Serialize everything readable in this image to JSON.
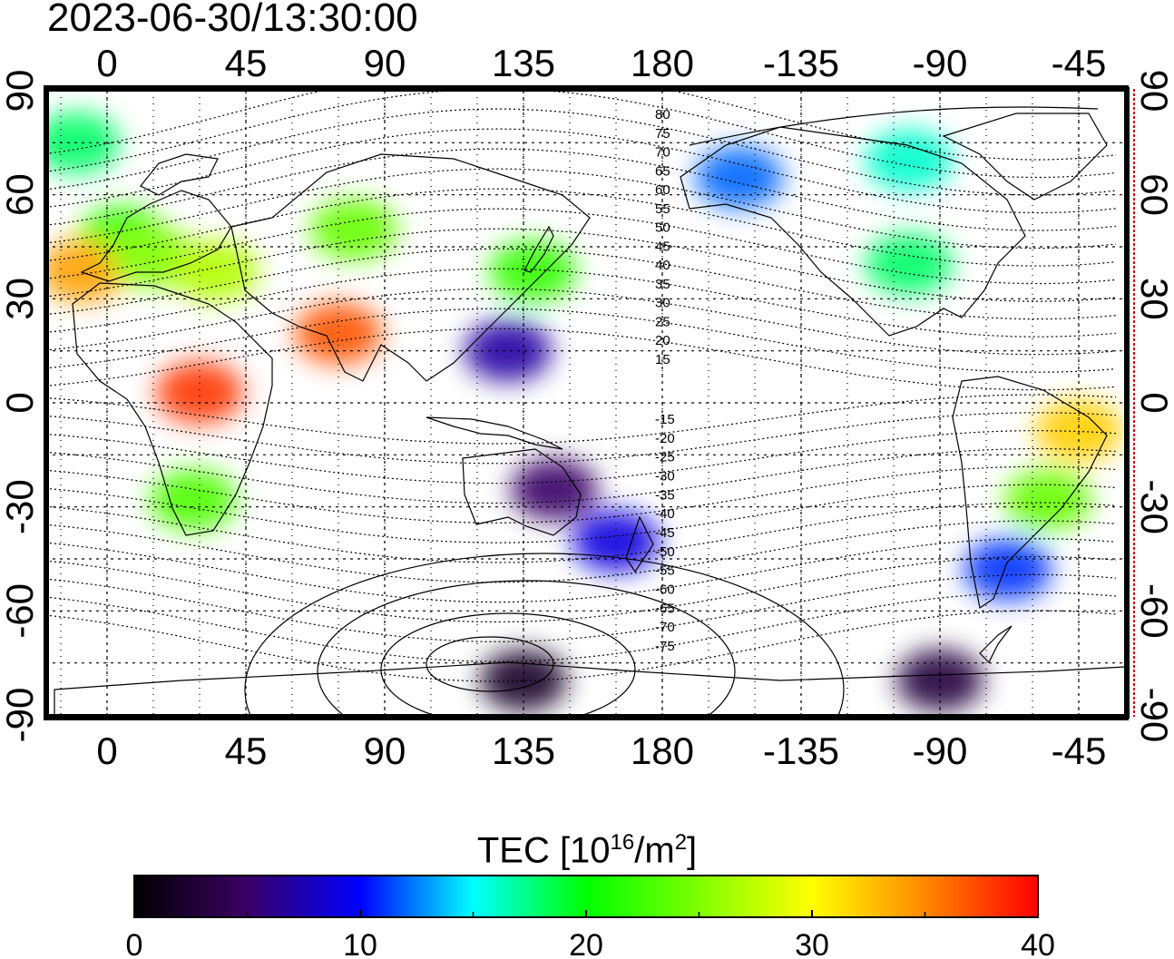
{
  "timestamp": "2023-06-30/13:30:00",
  "axes": {
    "top_lon_ticks": [
      "0",
      "45",
      "90",
      "135",
      "180",
      "-135",
      "-90",
      "-45"
    ],
    "bottom_lon_ticks": [
      "0",
      "45",
      "90",
      "135",
      "180",
      "-135",
      "-90",
      "-45"
    ],
    "left_lat_ticks": [
      "90",
      "60",
      "30",
      "0",
      "-30",
      "-60",
      "-90"
    ],
    "right_lat_ticks": [
      "90",
      "60",
      "30",
      "0",
      "-30",
      "-60",
      "-90"
    ],
    "lon_range": [
      -20,
      330
    ],
    "lat_range": [
      -90,
      90
    ],
    "grid": true
  },
  "magnetic_latitude_labels": [
    "80",
    "75",
    "70",
    "65",
    "60",
    "55",
    "50",
    "45",
    "40",
    "35",
    "30",
    "25",
    "20",
    "15",
    "-15",
    "-20",
    "-25",
    "-30",
    "-35",
    "-40",
    "-45",
    "-50",
    "-55",
    "-60",
    "-65",
    "-70",
    "-75"
  ],
  "colorbar": {
    "title_prefix": "TEC  [10",
    "title_exp1": "16",
    "title_mid": "/m",
    "title_exp2": "2",
    "title_suffix": "]",
    "tick_labels": [
      "0",
      "10",
      "20",
      "30",
      "40"
    ],
    "range": [
      0,
      40
    ]
  },
  "tec_regions": [
    {
      "lon": -10,
      "lat": 75,
      "tec": 18
    },
    {
      "lon": 5,
      "lat": 48,
      "tec": 22
    },
    {
      "lon": -8,
      "lat": 38,
      "tec": 34
    },
    {
      "lon": 15,
      "lat": 42,
      "tec": 25
    },
    {
      "lon": 35,
      "lat": 38,
      "tec": 27
    },
    {
      "lon": 30,
      "lat": 3,
      "tec": 38
    },
    {
      "lon": 75,
      "lat": 20,
      "tec": 37
    },
    {
      "lon": 80,
      "lat": 50,
      "tec": 24
    },
    {
      "lon": 138,
      "lat": 38,
      "tec": 22
    },
    {
      "lon": 130,
      "lat": 15,
      "tec": 7
    },
    {
      "lon": 165,
      "lat": -40,
      "tec": 9
    },
    {
      "lon": 145,
      "lat": -25,
      "tec": 5
    },
    {
      "lon": 28,
      "lat": -28,
      "tec": 23
    },
    {
      "lon": -100,
      "lat": 40,
      "tec": 18
    },
    {
      "lon": -100,
      "lat": 70,
      "tec": 16
    },
    {
      "lon": -155,
      "lat": 65,
      "tec": 12
    },
    {
      "lon": -45,
      "lat": -8,
      "tec": 32
    },
    {
      "lon": -55,
      "lat": -28,
      "tec": 24
    },
    {
      "lon": -68,
      "lat": -48,
      "tec": 11
    },
    {
      "lon": 135,
      "lat": -80,
      "tec": 2
    },
    {
      "lon": -90,
      "lat": -80,
      "tec": 3
    }
  ]
}
